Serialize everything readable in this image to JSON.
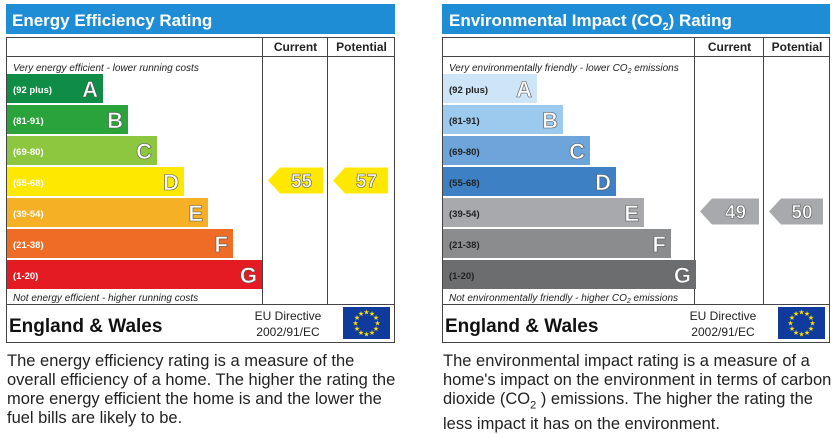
{
  "chart_data": [
    {
      "type": "bar",
      "title": "Energy Efficiency Rating",
      "columns": [
        "Current",
        "Potential"
      ],
      "top_note": "Very energy efficient - lower running costs",
      "bottom_note": "Not energy efficient - higher running costs",
      "bands": [
        {
          "range": "(92 plus)",
          "letter": "A",
          "min": 92,
          "max": 100,
          "color": "#0f8c45"
        },
        {
          "range": "(81-91)",
          "letter": "B",
          "min": 81,
          "max": 91,
          "color": "#2aa43a"
        },
        {
          "range": "(69-80)",
          "letter": "C",
          "min": 69,
          "max": 80,
          "color": "#8dc63f"
        },
        {
          "range": "(55-68)",
          "letter": "D",
          "min": 55,
          "max": 68,
          "color": "#ffe800"
        },
        {
          "range": "(39-54)",
          "letter": "E",
          "min": 39,
          "max": 54,
          "color": "#f5b025"
        },
        {
          "range": "(21-38)",
          "letter": "F",
          "min": 21,
          "max": 38,
          "color": "#ef6c27"
        },
        {
          "range": "(1-20)",
          "letter": "G",
          "min": 1,
          "max": 20,
          "color": "#e41b22"
        }
      ],
      "current": {
        "value": 55,
        "band": "D",
        "color": "#ffe800"
      },
      "potential": {
        "value": 57,
        "band": "D",
        "color": "#ffe800"
      },
      "footer": {
        "region": "England & Wales",
        "directive_line1": "EU Directive",
        "directive_line2": "2002/91/EC"
      }
    },
    {
      "type": "bar",
      "title": "Environmental Impact (CO2) Rating",
      "title_parts": {
        "before": "Environmental Impact (CO",
        "sub": "2",
        "after": ") Rating"
      },
      "columns": [
        "Current",
        "Potential"
      ],
      "top_note": "Very environmentally friendly - lower CO2 emissions",
      "top_note_parts": {
        "before": "Very environmentally friendly - lower CO",
        "sub": "2",
        "after": " emissions"
      },
      "bottom_note": "Not environmentally friendly - higher CO2 emissions",
      "bottom_note_parts": {
        "before": "Not environmentally friendly - higher CO",
        "sub": "2",
        "after": " emissions"
      },
      "bands": [
        {
          "range": "(92 plus)",
          "letter": "A",
          "min": 92,
          "max": 100,
          "color": "#cde5f6"
        },
        {
          "range": "(81-91)",
          "letter": "B",
          "min": 81,
          "max": 91,
          "color": "#9ccaee"
        },
        {
          "range": "(69-80)",
          "letter": "C",
          "min": 69,
          "max": 80,
          "color": "#6da4d9"
        },
        {
          "range": "(55-68)",
          "letter": "D",
          "min": 55,
          "max": 68,
          "color": "#3e80c4"
        },
        {
          "range": "(39-54)",
          "letter": "E",
          "min": 39,
          "max": 54,
          "color": "#a7a9ac"
        },
        {
          "range": "(21-38)",
          "letter": "F",
          "min": 21,
          "max": 38,
          "color": "#8a8c8e"
        },
        {
          "range": "(1-20)",
          "letter": "G",
          "min": 1,
          "max": 20,
          "color": "#6b6d6f"
        }
      ],
      "current": {
        "value": 49,
        "band": "E",
        "color": "#a7a9ac"
      },
      "potential": {
        "value": 50,
        "band": "E",
        "color": "#a7a9ac"
      },
      "footer": {
        "region": "England & Wales",
        "directive_line1": "EU Directive",
        "directive_line2": "2002/91/EC"
      }
    }
  ],
  "descriptions": {
    "energy": "The energy efficiency rating is a measure of the overall efficiency of a home. The higher the rating the more energy efficient the home is and the lower the fuel bills are likely to be.",
    "environmental": "The environmental impact rating is a measure of a home's impact on the environment in terms of carbon dioxide (CO2) emissions. The higher the rating the less impact it has on the environment.",
    "environmental_parts": {
      "before": "The environmental impact rating is a measure of a home's impact on the environment in terms of carbon dioxide (CO",
      "sub": "2",
      "after": " ) emissions. The higher the rating the less impact it has on the environment."
    }
  },
  "colors": {
    "title_bar": "#1f8dd6",
    "eu_flag": "#0f3b9c",
    "eu_star": "#ffdd00"
  }
}
